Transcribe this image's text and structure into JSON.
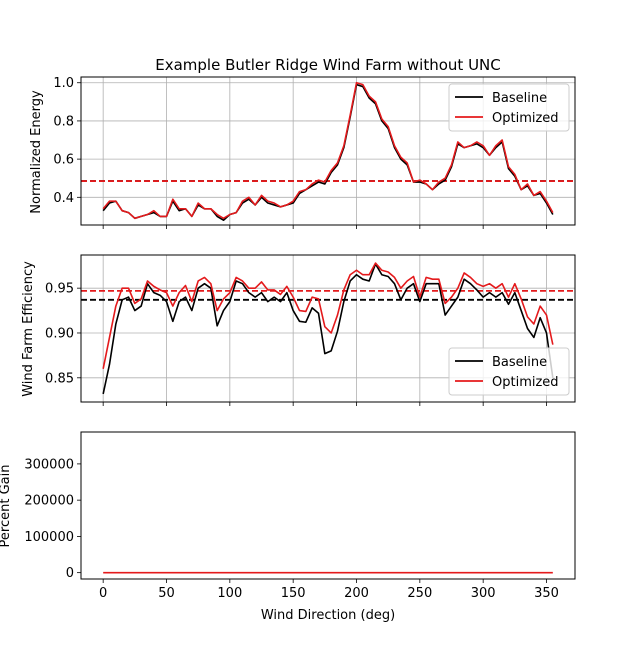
{
  "chart_data": [
    {
      "type": "line",
      "title": "Example Butler Ridge Wind Farm without UNC",
      "xlabel": "",
      "ylabel": "Normalized Energy",
      "xlim": [
        -17.5,
        372.5
      ],
      "ylim": [
        0.255,
        1.03
      ],
      "xticks": [
        0,
        50,
        100,
        150,
        200,
        250,
        300,
        350
      ],
      "yticks": [
        0.4,
        0.6,
        0.8,
        1.0
      ],
      "ytick_labels": [
        "0.4",
        "0.6",
        "0.8",
        "1.0"
      ],
      "show_xtick_labels": false,
      "grid": true,
      "legend": "upper right",
      "x": [
        0,
        5,
        10,
        15,
        20,
        25,
        30,
        35,
        40,
        45,
        50,
        55,
        60,
        65,
        70,
        75,
        80,
        85,
        90,
        95,
        100,
        105,
        110,
        115,
        120,
        125,
        130,
        135,
        140,
        145,
        150,
        155,
        160,
        165,
        170,
        175,
        180,
        185,
        190,
        195,
        200,
        205,
        210,
        215,
        220,
        225,
        230,
        235,
        240,
        245,
        250,
        255,
        260,
        265,
        270,
        275,
        280,
        285,
        290,
        295,
        300,
        305,
        310,
        315,
        320,
        325,
        330,
        335,
        340,
        345,
        350,
        355
      ],
      "series": [
        {
          "name": "Baseline",
          "color": "#000000",
          "values": [
            0.33,
            0.37,
            0.38,
            0.33,
            0.32,
            0.29,
            0.3,
            0.31,
            0.32,
            0.3,
            0.3,
            0.38,
            0.33,
            0.34,
            0.3,
            0.36,
            0.34,
            0.34,
            0.3,
            0.28,
            0.31,
            0.32,
            0.37,
            0.39,
            0.36,
            0.4,
            0.37,
            0.36,
            0.35,
            0.36,
            0.37,
            0.42,
            0.44,
            0.46,
            0.48,
            0.47,
            0.53,
            0.57,
            0.66,
            0.82,
            0.99,
            0.98,
            0.92,
            0.89,
            0.8,
            0.76,
            0.66,
            0.6,
            0.57,
            0.48,
            0.48,
            0.47,
            0.44,
            0.47,
            0.49,
            0.56,
            0.68,
            0.66,
            0.67,
            0.68,
            0.66,
            0.62,
            0.66,
            0.69,
            0.55,
            0.51,
            0.44,
            0.46,
            0.41,
            0.42,
            0.37,
            0.31
          ]
        },
        {
          "name": "Optimized",
          "color": "#e41a1c",
          "values": [
            0.34,
            0.38,
            0.38,
            0.33,
            0.32,
            0.29,
            0.3,
            0.31,
            0.33,
            0.3,
            0.3,
            0.39,
            0.34,
            0.34,
            0.3,
            0.37,
            0.34,
            0.34,
            0.31,
            0.29,
            0.31,
            0.32,
            0.38,
            0.4,
            0.36,
            0.41,
            0.38,
            0.37,
            0.35,
            0.36,
            0.38,
            0.43,
            0.44,
            0.47,
            0.49,
            0.48,
            0.54,
            0.58,
            0.67,
            0.83,
            1.0,
            0.99,
            0.93,
            0.9,
            0.81,
            0.77,
            0.67,
            0.61,
            0.58,
            0.48,
            0.49,
            0.47,
            0.44,
            0.48,
            0.5,
            0.57,
            0.69,
            0.66,
            0.67,
            0.69,
            0.67,
            0.62,
            0.67,
            0.7,
            0.56,
            0.52,
            0.44,
            0.47,
            0.41,
            0.43,
            0.38,
            0.32
          ]
        }
      ],
      "hlines": [
        {
          "y": 0.485,
          "color": "#000000",
          "dashed": true
        },
        {
          "y": 0.485,
          "color": "#e41a1c",
          "dashed": true
        }
      ]
    },
    {
      "type": "line",
      "xlabel": "",
      "ylabel": "Wind Farm Efficiency",
      "xlim": [
        -17.5,
        372.5
      ],
      "ylim": [
        0.823,
        0.987
      ],
      "xticks": [
        0,
        50,
        100,
        150,
        200,
        250,
        300,
        350
      ],
      "yticks": [
        0.85,
        0.9,
        0.95
      ],
      "ytick_labels": [
        "0.85",
        "0.90",
        "0.95"
      ],
      "show_xtick_labels": false,
      "grid": true,
      "legend": "lower right",
      "x": [
        0,
        5,
        10,
        15,
        20,
        25,
        30,
        35,
        40,
        45,
        50,
        55,
        60,
        65,
        70,
        75,
        80,
        85,
        90,
        95,
        100,
        105,
        110,
        115,
        120,
        125,
        130,
        135,
        140,
        145,
        150,
        155,
        160,
        165,
        170,
        175,
        180,
        185,
        190,
        195,
        200,
        205,
        210,
        215,
        220,
        225,
        230,
        235,
        240,
        245,
        250,
        255,
        260,
        265,
        270,
        275,
        280,
        285,
        290,
        295,
        300,
        305,
        310,
        315,
        320,
        325,
        330,
        335,
        340,
        345,
        350,
        355
      ],
      "series": [
        {
          "name": "Baseline",
          "color": "#000000",
          "values": [
            0.832,
            0.865,
            0.91,
            0.937,
            0.94,
            0.925,
            0.93,
            0.955,
            0.945,
            0.942,
            0.935,
            0.913,
            0.935,
            0.94,
            0.925,
            0.95,
            0.955,
            0.95,
            0.908,
            0.925,
            0.935,
            0.958,
            0.955,
            0.945,
            0.94,
            0.945,
            0.935,
            0.94,
            0.935,
            0.945,
            0.925,
            0.913,
            0.912,
            0.928,
            0.922,
            0.877,
            0.88,
            0.902,
            0.935,
            0.958,
            0.965,
            0.96,
            0.958,
            0.977,
            0.965,
            0.963,
            0.955,
            0.937,
            0.95,
            0.955,
            0.935,
            0.955,
            0.955,
            0.955,
            0.92,
            0.93,
            0.94,
            0.96,
            0.955,
            0.948,
            0.94,
            0.945,
            0.94,
            0.945,
            0.932,
            0.945,
            0.925,
            0.905,
            0.895,
            0.917,
            0.9,
            0.85
          ]
        },
        {
          "name": "Optimized",
          "color": "#e41a1c",
          "values": [
            0.86,
            0.895,
            0.93,
            0.95,
            0.95,
            0.933,
            0.938,
            0.958,
            0.952,
            0.948,
            0.945,
            0.93,
            0.945,
            0.953,
            0.935,
            0.958,
            0.962,
            0.955,
            0.925,
            0.938,
            0.945,
            0.962,
            0.958,
            0.95,
            0.95,
            0.957,
            0.948,
            0.948,
            0.943,
            0.952,
            0.94,
            0.925,
            0.924,
            0.94,
            0.938,
            0.907,
            0.9,
            0.92,
            0.948,
            0.965,
            0.97,
            0.965,
            0.965,
            0.978,
            0.97,
            0.968,
            0.962,
            0.95,
            0.958,
            0.963,
            0.94,
            0.962,
            0.96,
            0.96,
            0.933,
            0.94,
            0.95,
            0.967,
            0.962,
            0.955,
            0.952,
            0.955,
            0.95,
            0.955,
            0.94,
            0.955,
            0.938,
            0.918,
            0.91,
            0.93,
            0.92,
            0.887
          ]
        }
      ],
      "hlines": [
        {
          "y": 0.937,
          "color": "#000000",
          "dashed": true
        },
        {
          "y": 0.947,
          "color": "#e41a1c",
          "dashed": true
        }
      ]
    },
    {
      "type": "line",
      "xlabel": "Wind Direction (deg)",
      "ylabel": "Percent Gain",
      "xlim": [
        -17.5,
        372.5
      ],
      "ylim": [
        -17500,
        388000
      ],
      "xticks": [
        0,
        50,
        100,
        150,
        200,
        250,
        300,
        350
      ],
      "xtick_labels": [
        "0",
        "50",
        "100",
        "150",
        "200",
        "250",
        "300",
        "350"
      ],
      "yticks": [
        0,
        100000,
        200000,
        300000
      ],
      "ytick_labels": [
        "0",
        "100000",
        "200000",
        "300000"
      ],
      "show_xtick_labels": true,
      "grid": false,
      "legend": "none",
      "x": [
        0,
        355
      ],
      "series": [
        {
          "color": "#e41a1c",
          "values": [
            0,
            0
          ]
        }
      ],
      "hlines": []
    }
  ]
}
